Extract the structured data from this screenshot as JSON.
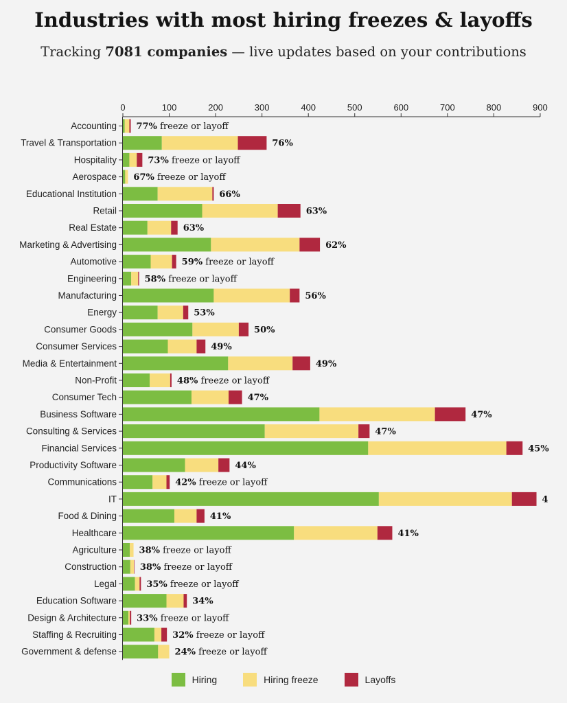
{
  "title": "Industries with most hiring freezes & layoffs",
  "subtitle": {
    "prefix": "Tracking ",
    "bold": "7081 companies",
    "suffix": " — live updates based on your contributions"
  },
  "colors": {
    "hiring": "#7cbd42",
    "freeze": "#f8dd7e",
    "layoffs": "#b0283f"
  },
  "legend": [
    "Hiring",
    "Hiring freeze",
    "Layoffs"
  ],
  "chart_data": {
    "type": "bar",
    "orientation": "horizontal",
    "stacked": true,
    "xlim": [
      0,
      900
    ],
    "xticks": [
      0,
      100,
      200,
      300,
      400,
      500,
      600,
      700,
      800,
      900
    ],
    "x_axis_position": "top",
    "grid": false,
    "legend_position": "bottom",
    "categories": [
      "Accounting",
      "Travel & Transportation",
      "Hospitality",
      "Aerospace",
      "Educational Institution",
      "Retail",
      "Real Estate",
      "Marketing & Advertising",
      "Automotive",
      "Engineering",
      "Manufacturing",
      "Energy",
      "Consumer Goods",
      "Consumer Services",
      "Media & Entertainment",
      "Non-Profit",
      "Consumer Tech",
      "Business Software",
      "Consulting & Services",
      "Financial Services",
      "Productivity Software",
      "Communications",
      "IT",
      "Food & Dining",
      "Healthcare",
      "Agriculture",
      "Construction",
      "Legal",
      "Education Software",
      "Design & Architecture",
      "Staffing & Recruiting",
      "Government & defense"
    ],
    "series": [
      {
        "name": "Hiring",
        "values": [
          4,
          84,
          14,
          5,
          75,
          171,
          53,
          190,
          60,
          18,
          196,
          75,
          150,
          97,
          227,
          58,
          148,
          424,
          306,
          529,
          134,
          64,
          552,
          111,
          369,
          15,
          16,
          26,
          94,
          12,
          68,
          76
        ]
      },
      {
        "name": "Hiring freeze",
        "values": [
          10,
          164,
          16,
          6,
          118,
          163,
          51,
          191,
          46,
          15,
          164,
          55,
          100,
          62,
          139,
          44,
          80,
          249,
          202,
          298,
          72,
          30,
          287,
          48,
          180,
          8,
          8,
          10,
          37,
          3,
          15,
          24
        ]
      },
      {
        "name": "Layoffs",
        "values": [
          3,
          62,
          12,
          0,
          3,
          49,
          14,
          44,
          9,
          2,
          21,
          11,
          21,
          19,
          38,
          3,
          29,
          66,
          24,
          35,
          24,
          7,
          53,
          17,
          32,
          0,
          1,
          3,
          7,
          3,
          12,
          0
        ]
      }
    ],
    "data_labels": [
      "77% freeze or layoff",
      "76%",
      "73% freeze or layoff",
      "67% freeze or layoff",
      "66%",
      "63%",
      "63%",
      "62%",
      "59% freeze or layoff",
      "58% freeze or layoff",
      "56%",
      "53%",
      "50%",
      "49%",
      "49%",
      "48% freeze or layoff",
      "47%",
      "47%",
      "47%",
      "45%",
      "44%",
      "42% freeze or layoff",
      "4",
      "41%",
      "41%",
      "38% freeze or layoff",
      "38% freeze or layoff",
      "35% freeze or layoff",
      "34%",
      "33% freeze or layoff",
      "32% freeze or layoff",
      "24% freeze or layoff"
    ]
  }
}
